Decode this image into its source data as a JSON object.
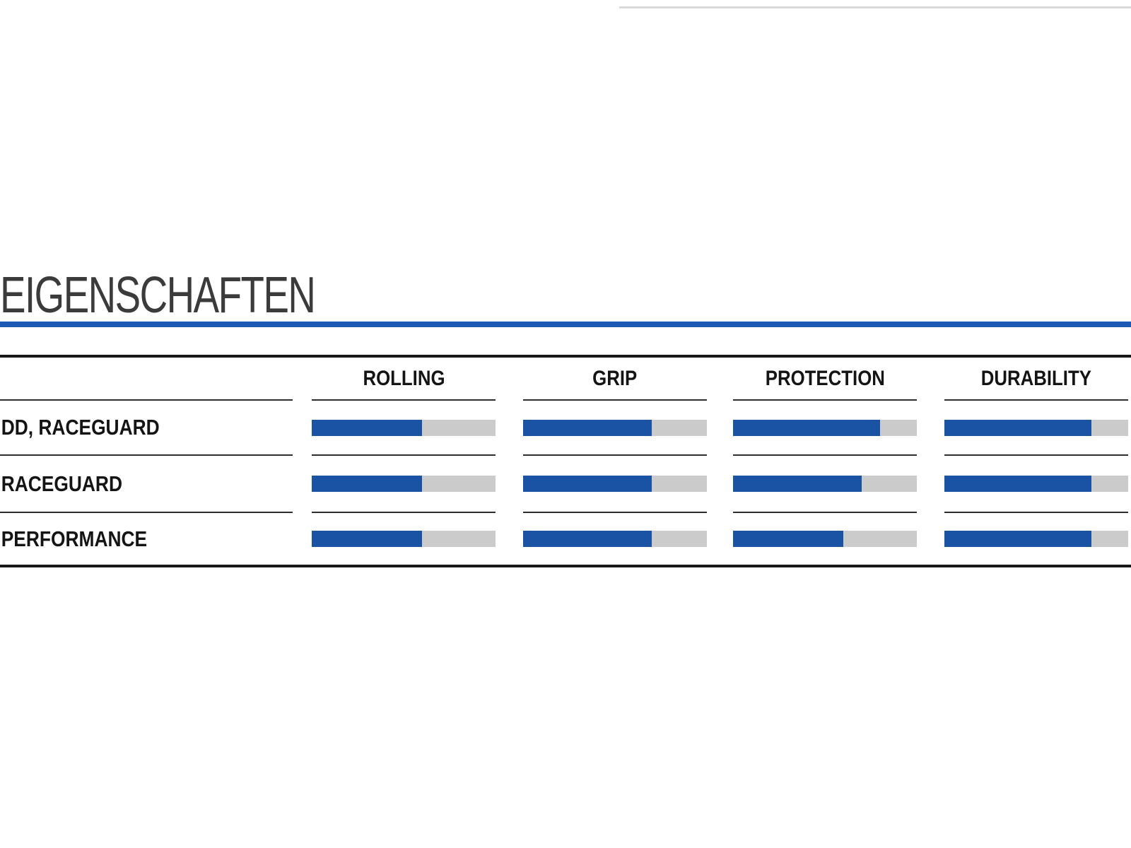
{
  "title": "EIGENSCHAFTEN",
  "colors": {
    "title_text": "#3b3b3b",
    "accent_rule_blue": "#1c5ab4",
    "bar_fill_blue": "#1b53a4",
    "bar_track_gray": "#cbcbcb",
    "table_border_dark": "#181818",
    "separator_line": "#2e2e2e",
    "faint_top_line": "#dadada"
  },
  "chart_data": {
    "type": "bar",
    "title": "EIGENSCHAFTEN",
    "orientation": "horizontal-rating-bars",
    "columns": [
      "ROLLING",
      "GRIP",
      "PROTECTION",
      "DURABILITY"
    ],
    "rows": [
      {
        "label": "DD, RACEGUARD",
        "values": [
          60,
          70,
          80,
          80
        ]
      },
      {
        "label": "RACEGUARD",
        "values": [
          60,
          70,
          70,
          80
        ]
      },
      {
        "label": "PERFORMANCE",
        "values": [
          60,
          70,
          60,
          80
        ]
      }
    ],
    "scale": {
      "min": 0,
      "max": 100,
      "unit": "percent-filled"
    },
    "grid": "row-and-header-separator-lines",
    "legend": "none"
  }
}
